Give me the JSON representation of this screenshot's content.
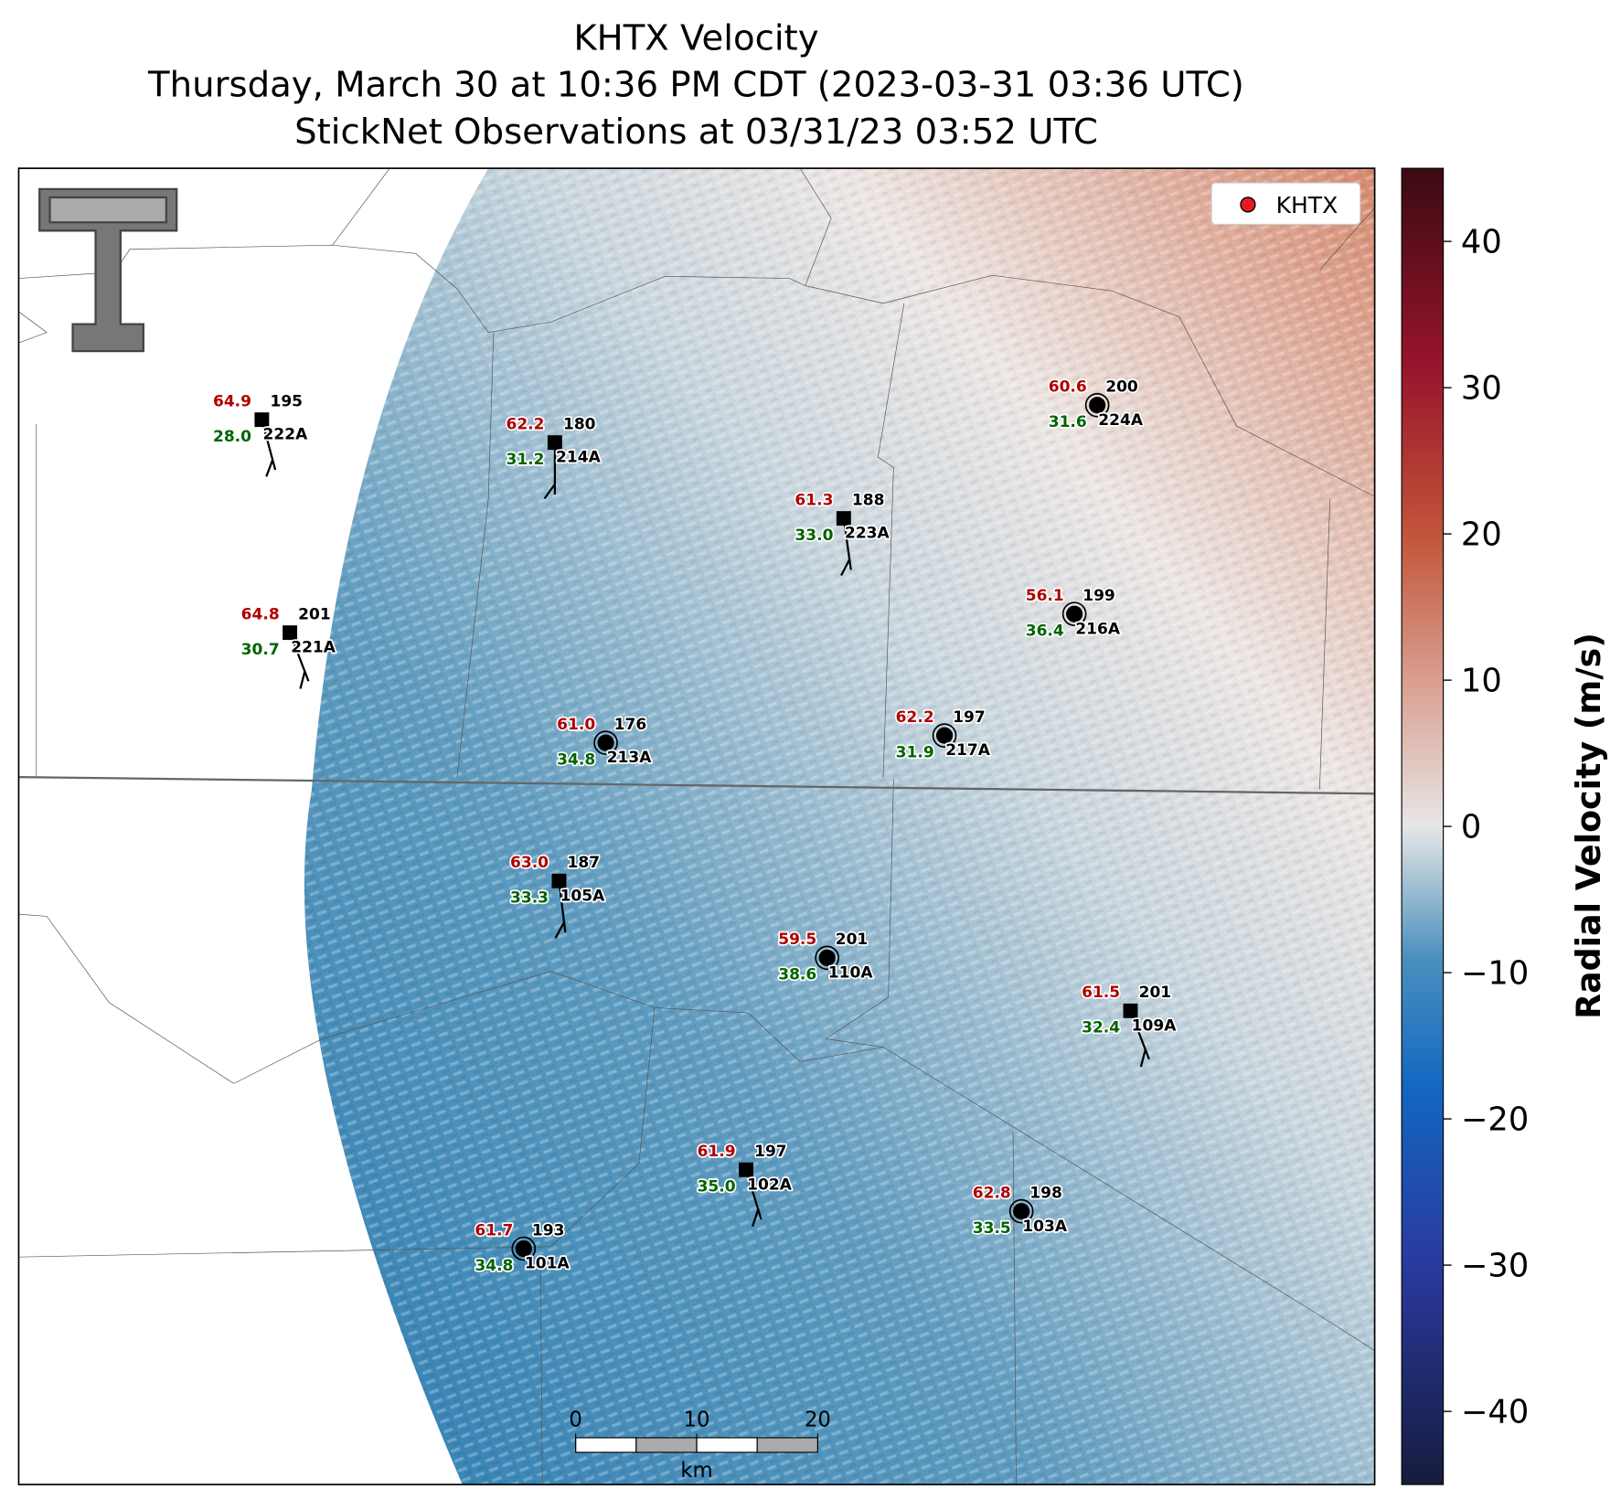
{
  "title_lines": [
    "KHTX Velocity",
    "Thursday, March 30 at 10:36 PM CDT (2023-03-31 03:36 UTC)",
    "StickNet Observations at 03/31/23 03:52 UTC"
  ],
  "legend": {
    "label": "KHTX",
    "color": "#e41a1c"
  },
  "colorbar": {
    "label": "Radial Velocity (m/s)",
    "lim": [
      -45,
      45
    ],
    "ticks": [
      {
        "value": -40,
        "label": "−40"
      },
      {
        "value": -30,
        "label": "−30"
      },
      {
        "value": -20,
        "label": "−20"
      },
      {
        "value": -10,
        "label": "−10"
      },
      0,
      10,
      20,
      30,
      40
    ]
  },
  "scale_bar": {
    "ticks": [
      0,
      10,
      20
    ],
    "unit": "km"
  },
  "stations": [
    {
      "id": "222A",
      "temperature": "64.9",
      "dewpoint": "28.0",
      "direction": "195",
      "marker": "square"
    },
    {
      "id": "214A",
      "temperature": "62.2",
      "dewpoint": "31.2",
      "direction": "180",
      "marker": "square"
    },
    {
      "id": "223A",
      "temperature": "61.3",
      "dewpoint": "33.0",
      "direction": "188",
      "marker": "square"
    },
    {
      "id": "224A",
      "temperature": "60.6",
      "dewpoint": "31.6",
      "direction": "200",
      "marker": "circle"
    },
    {
      "id": "216A",
      "temperature": "56.1",
      "dewpoint": "36.4",
      "direction": "199",
      "marker": "circle"
    },
    {
      "id": "221A",
      "temperature": "64.8",
      "dewpoint": "30.7",
      "direction": "201",
      "marker": "square"
    },
    {
      "id": "213A",
      "temperature": "61.0",
      "dewpoint": "34.8",
      "direction": "176",
      "marker": "circle"
    },
    {
      "id": "217A",
      "temperature": "62.2",
      "dewpoint": "31.9",
      "direction": "197",
      "marker": "circle"
    },
    {
      "id": "105A",
      "temperature": "63.0",
      "dewpoint": "33.3",
      "direction": "187",
      "marker": "square"
    },
    {
      "id": "110A",
      "temperature": "59.5",
      "dewpoint": "38.6",
      "direction": "201",
      "marker": "circle"
    },
    {
      "id": "109A",
      "temperature": "61.5",
      "dewpoint": "32.4",
      "direction": "201",
      "marker": "square"
    },
    {
      "id": "102A",
      "temperature": "61.9",
      "dewpoint": "35.0",
      "direction": "197",
      "marker": "square"
    },
    {
      "id": "103A",
      "temperature": "62.8",
      "dewpoint": "33.5",
      "direction": "198",
      "marker": "circle"
    },
    {
      "id": "101A",
      "temperature": "61.7",
      "dewpoint": "34.8",
      "direction": "193",
      "marker": "circle"
    }
  ]
}
